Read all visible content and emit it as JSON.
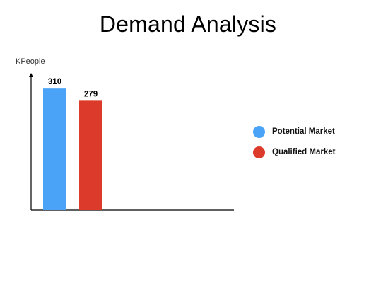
{
  "chart_data": {
    "type": "bar",
    "title": "Demand Analysis",
    "ylabel": "KPeople",
    "xlabel": "",
    "ylim": [
      0,
      350
    ],
    "grid": false,
    "legend_placement": "right",
    "series": [
      {
        "name": "Potential Market",
        "value": 310,
        "label": "310",
        "color": "#4AA3F7"
      },
      {
        "name": "Qualified Market",
        "value": 279,
        "label": "279",
        "color": "#DC3B2B"
      }
    ]
  }
}
